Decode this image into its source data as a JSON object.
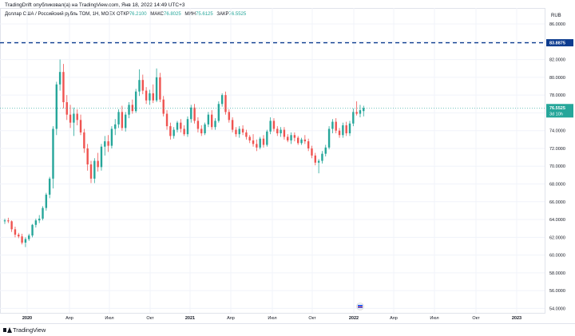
{
  "header": {
    "published": "TradingDrift опубликовал(а) на TradingView.com, Янв 18, 2022 14:49 UTC+3"
  },
  "legend": {
    "symbol": "Доллар США / Российский рубль TOM, 1Н, MOEX",
    "open_label": "ОТКР",
    "open_value": "76.2100",
    "high_label": "МАКС",
    "high_value": "76.8025",
    "low_label": "МИН",
    "low_value": "75.6125",
    "close_label": "ЗАКР",
    "close_value": "76.5525"
  },
  "footer": {
    "brand": "TradingView"
  },
  "colors": {
    "up": "#26a69a",
    "down": "#ef5350",
    "level": "#0d3c8f",
    "price": "#26a69a"
  },
  "chart_data": {
    "type": "candlestick",
    "currency": "RUB",
    "ylim": [
      53.5,
      87.8
    ],
    "y_ticks": [
      "86.0000",
      "84.0000",
      "82.0000",
      "80.0000",
      "78.0000",
      "76.0000",
      "74.0000",
      "72.0000",
      "70.0000",
      "68.0000",
      "66.0000",
      "64.0000",
      "62.0000",
      "60.0000",
      "58.0000",
      "56.0000",
      "54.0000"
    ],
    "x_ticks": [
      "2020",
      "Апр",
      "Июл",
      "Окт",
      "2021",
      "Апр",
      "Июл",
      "Окт",
      "2022",
      "Апр",
      "Июл",
      "Окт",
      "2023"
    ],
    "level_line": {
      "value": 83.8875,
      "label": "83.8875"
    },
    "last_price": {
      "value": 76.5525,
      "label": "76.5525",
      "countdown": "3d 10h"
    },
    "ohlc": [
      [
        63.8,
        64.1,
        63.5,
        63.9
      ],
      [
        63.9,
        64.2,
        63.6,
        63.8
      ],
      [
        63.8,
        63.9,
        62.6,
        62.9
      ],
      [
        62.9,
        63.2,
        62.0,
        62.3
      ],
      [
        62.3,
        62.5,
        61.9,
        62.1
      ],
      [
        62.1,
        62.4,
        61.2,
        61.4
      ],
      [
        61.4,
        62.0,
        60.9,
        61.8
      ],
      [
        61.8,
        62.4,
        61.6,
        62.2
      ],
      [
        62.2,
        63.5,
        62.0,
        63.4
      ],
      [
        63.4,
        64.1,
        63.1,
        63.9
      ],
      [
        63.9,
        64.5,
        63.6,
        64.1
      ],
      [
        64.1,
        65.5,
        63.9,
        65.3
      ],
      [
        65.3,
        67.0,
        65.0,
        66.8
      ],
      [
        66.8,
        68.8,
        66.4,
        68.6
      ],
      [
        68.6,
        74.5,
        67.5,
        74.2
      ],
      [
        74.2,
        79.5,
        73.5,
        79.2
      ],
      [
        79.2,
        82.0,
        78.5,
        80.6
      ],
      [
        80.6,
        81.5,
        76.5,
        77.2
      ],
      [
        77.2,
        78.0,
        75.2,
        75.8
      ],
      [
        75.8,
        76.9,
        74.3,
        74.9
      ],
      [
        74.9,
        76.6,
        73.4,
        75.9
      ],
      [
        75.9,
        76.4,
        74.6,
        75.2
      ],
      [
        75.2,
        75.8,
        73.5,
        73.8
      ],
      [
        73.8,
        74.2,
        71.5,
        72.0
      ],
      [
        72.0,
        72.5,
        69.5,
        70.2
      ],
      [
        70.2,
        70.6,
        68.1,
        68.6
      ],
      [
        68.6,
        70.9,
        68.1,
        70.6
      ],
      [
        70.6,
        71.5,
        69.4,
        69.9
      ],
      [
        69.9,
        72.5,
        69.5,
        72.2
      ],
      [
        72.2,
        73.4,
        71.2,
        72.8
      ],
      [
        72.8,
        73.5,
        71.6,
        72.3
      ],
      [
        72.3,
        74.5,
        72.0,
        74.2
      ],
      [
        74.2,
        75.3,
        73.5,
        74.7
      ],
      [
        74.7,
        76.4,
        74.3,
        76.1
      ],
      [
        76.1,
        76.8,
        74.0,
        74.3
      ],
      [
        74.3,
        76.1,
        73.9,
        75.8
      ],
      [
        75.8,
        77.2,
        75.4,
        76.9
      ],
      [
        76.9,
        77.5,
        75.9,
        76.2
      ],
      [
        76.2,
        78.7,
        76.0,
        78.4
      ],
      [
        78.4,
        80.9,
        77.9,
        79.7
      ],
      [
        79.7,
        80.3,
        78.1,
        78.5
      ],
      [
        78.5,
        78.9,
        77.0,
        77.4
      ],
      [
        77.4,
        78.6,
        76.9,
        78.2
      ],
      [
        78.2,
        79.2,
        77.1,
        77.4
      ],
      [
        77.4,
        81.0,
        77.2,
        80.0
      ],
      [
        80.0,
        80.5,
        77.2,
        77.5
      ],
      [
        77.5,
        77.9,
        75.6,
        75.9
      ],
      [
        75.9,
        76.3,
        74.1,
        74.5
      ],
      [
        74.5,
        74.9,
        73.0,
        73.4
      ],
      [
        73.4,
        74.4,
        73.1,
        74.1
      ],
      [
        74.1,
        75.1,
        73.8,
        74.9
      ],
      [
        74.9,
        75.3,
        73.8,
        74.2
      ],
      [
        74.2,
        74.6,
        73.4,
        73.6
      ],
      [
        73.6,
        75.6,
        73.3,
        75.3
      ],
      [
        75.3,
        76.9,
        74.9,
        76.6
      ],
      [
        76.6,
        77.0,
        74.8,
        75.1
      ],
      [
        75.1,
        75.5,
        73.8,
        74.2
      ],
      [
        74.2,
        74.6,
        73.4,
        73.7
      ],
      [
        73.7,
        74.9,
        73.5,
        74.7
      ],
      [
        74.7,
        76.1,
        74.4,
        75.8
      ],
      [
        75.8,
        76.3,
        74.1,
        74.4
      ],
      [
        74.4,
        75.4,
        74.1,
        75.1
      ],
      [
        75.1,
        77.3,
        74.9,
        77.0
      ],
      [
        77.0,
        78.2,
        76.7,
        78.0
      ],
      [
        78.0,
        78.4,
        75.8,
        76.1
      ],
      [
        76.1,
        76.4,
        74.9,
        75.2
      ],
      [
        75.2,
        75.5,
        73.8,
        74.1
      ],
      [
        74.1,
        74.4,
        73.3,
        73.6
      ],
      [
        73.6,
        74.5,
        73.2,
        74.2
      ],
      [
        74.2,
        74.6,
        73.5,
        73.8
      ],
      [
        73.8,
        74.1,
        73.0,
        73.3
      ],
      [
        73.3,
        73.5,
        72.6,
        72.9
      ],
      [
        72.9,
        73.6,
        72.2,
        72.5
      ],
      [
        72.5,
        73.0,
        71.7,
        72.1
      ],
      [
        72.1,
        73.3,
        71.9,
        73.1
      ],
      [
        73.1,
        73.5,
        72.1,
        72.4
      ],
      [
        72.4,
        74.1,
        72.2,
        73.9
      ],
      [
        73.9,
        75.5,
        73.6,
        75.1
      ],
      [
        75.1,
        75.4,
        73.9,
        74.2
      ],
      [
        74.2,
        74.5,
        73.4,
        73.7
      ],
      [
        73.7,
        74.4,
        73.3,
        74.1
      ],
      [
        74.1,
        74.4,
        73.0,
        73.3
      ],
      [
        73.3,
        73.6,
        72.7,
        72.9
      ],
      [
        72.9,
        73.8,
        72.5,
        73.5
      ],
      [
        73.5,
        73.8,
        72.8,
        73.2
      ],
      [
        73.2,
        73.4,
        72.4,
        72.6
      ],
      [
        72.6,
        73.2,
        72.4,
        73.0
      ],
      [
        73.0,
        73.5,
        72.5,
        72.8
      ],
      [
        72.8,
        73.1,
        71.7,
        72.0
      ],
      [
        72.0,
        72.3,
        70.9,
        71.2
      ],
      [
        71.2,
        71.5,
        70.1,
        70.4
      ],
      [
        70.4,
        70.8,
        69.2,
        70.6
      ],
      [
        70.6,
        71.7,
        70.3,
        71.4
      ],
      [
        71.4,
        72.4,
        71.1,
        72.1
      ],
      [
        72.1,
        74.5,
        71.9,
        74.2
      ],
      [
        74.2,
        75.3,
        73.7,
        75.0
      ],
      [
        75.0,
        75.4,
        73.7,
        74.0
      ],
      [
        74.0,
        74.3,
        73.2,
        73.5
      ],
      [
        73.5,
        74.9,
        73.2,
        74.6
      ],
      [
        74.6,
        75.0,
        73.4,
        73.7
      ],
      [
        73.7,
        75.1,
        73.4,
        74.8
      ],
      [
        74.8,
        76.5,
        74.5,
        76.1
      ],
      [
        76.1,
        77.3,
        75.7,
        75.9
      ],
      [
        75.9,
        76.9,
        75.5,
        76.3
      ],
      [
        76.2,
        76.8,
        75.6,
        76.55
      ]
    ]
  }
}
